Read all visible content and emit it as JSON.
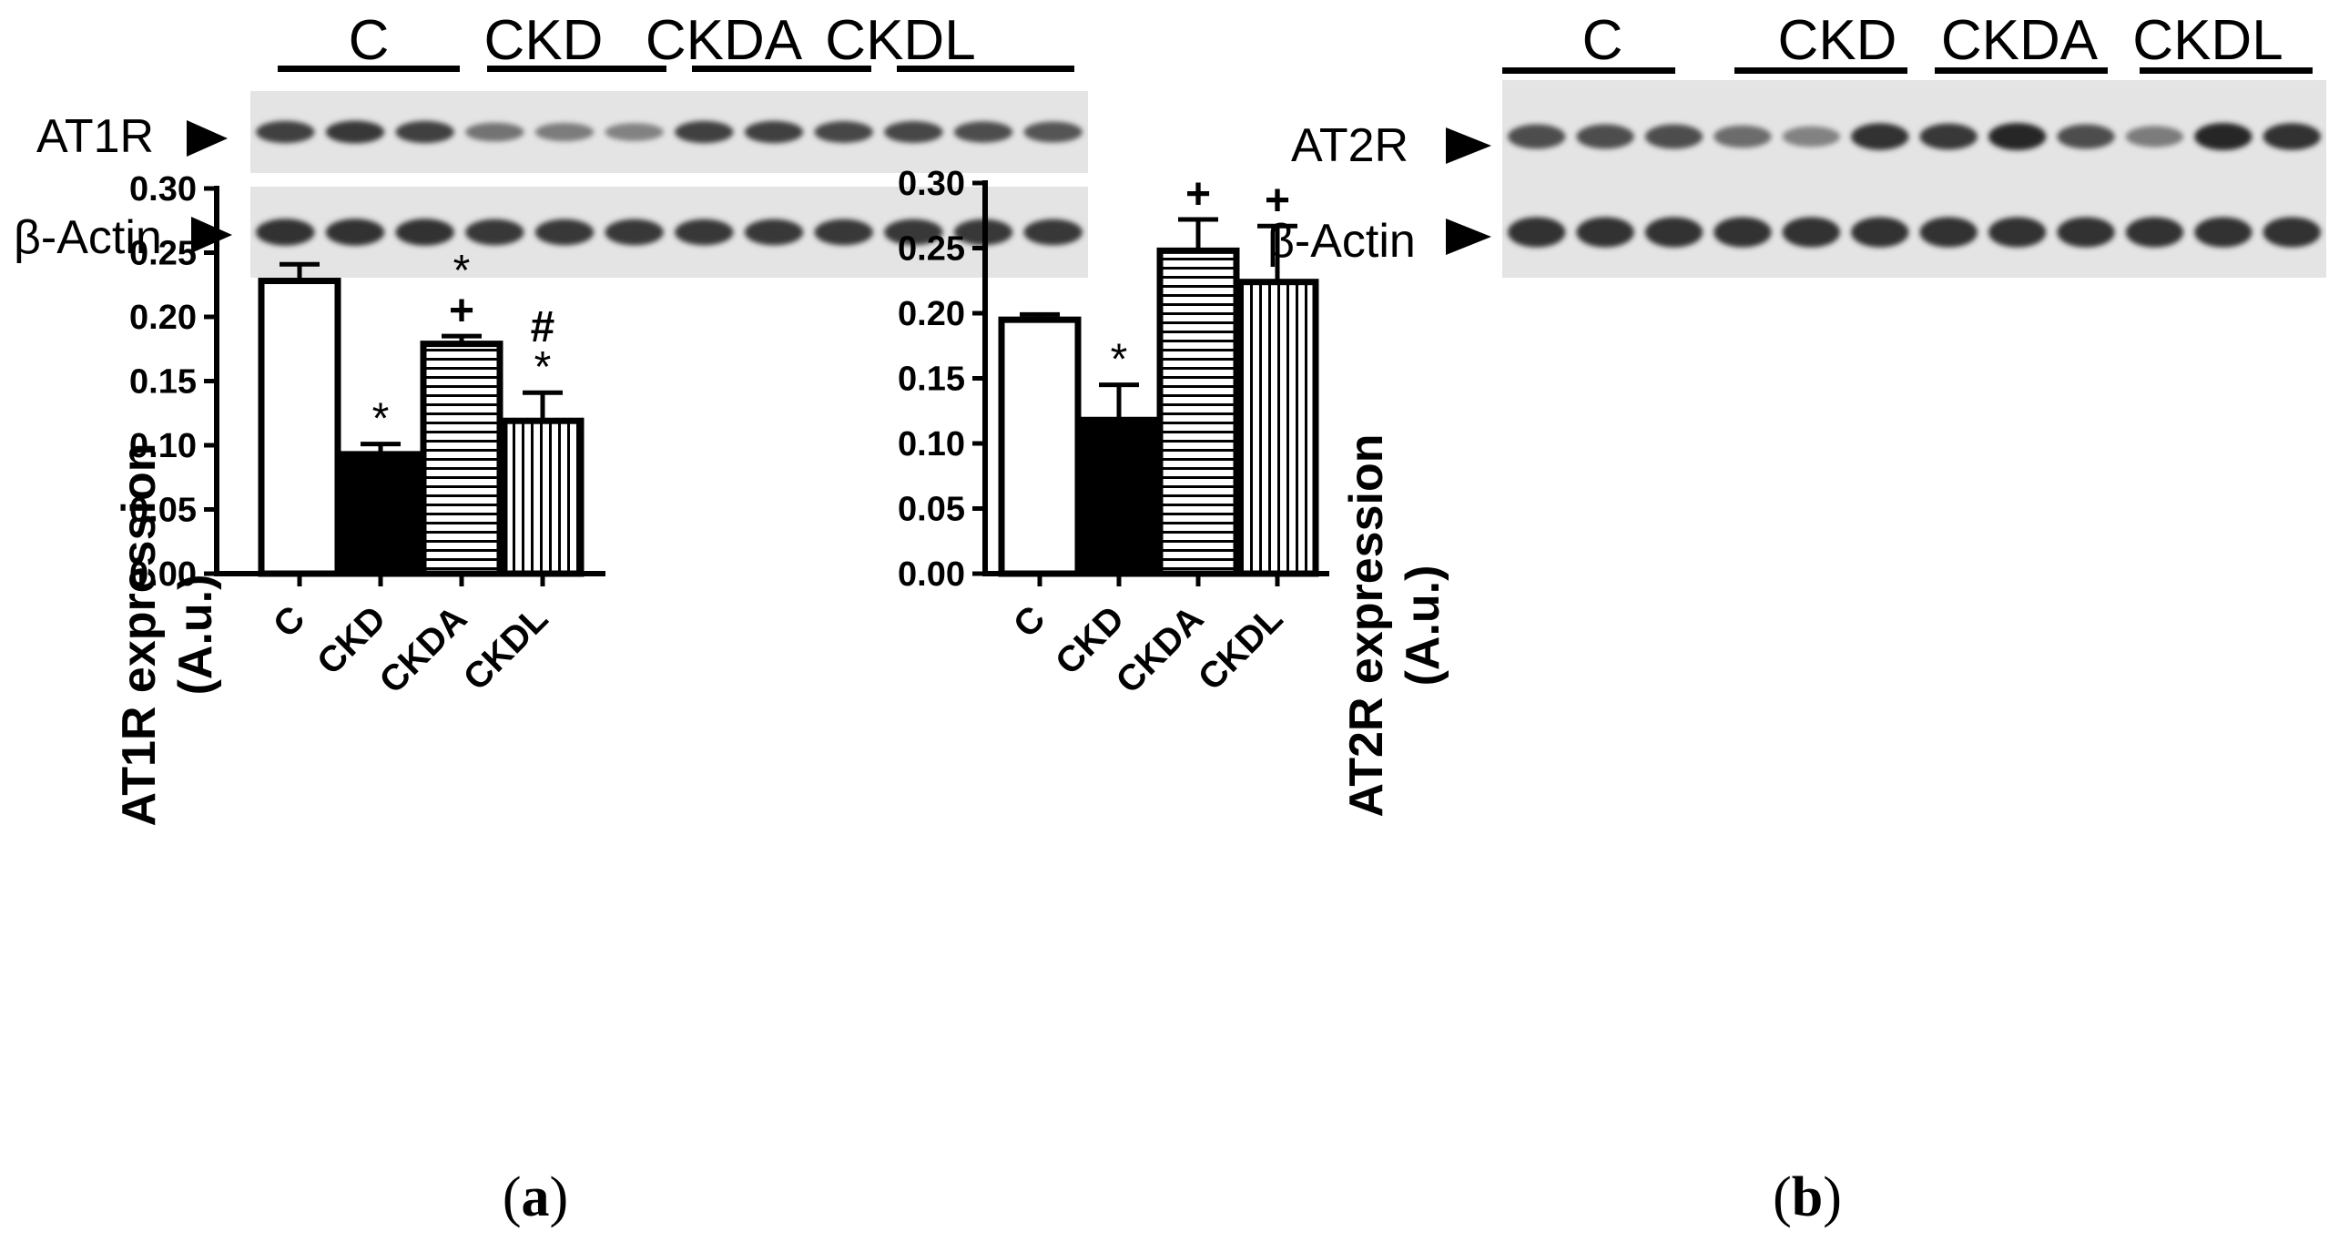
{
  "panels": [
    {
      "id": "a",
      "caption_letter": "a",
      "blot": {
        "groups": [
          "C",
          "CKD",
          "CKDA",
          "CKDL"
        ],
        "rows": [
          {
            "label": "AT1R",
            "lanes": [
              0.85,
              0.9,
              0.85,
              0.5,
              0.45,
              0.4,
              0.85,
              0.85,
              0.8,
              0.8,
              0.75,
              0.7
            ]
          },
          {
            "label": "β-Actin",
            "lanes": [
              0.95,
              0.95,
              0.95,
              0.9,
              0.9,
              0.9,
              0.9,
              0.9,
              0.9,
              0.9,
              0.9,
              0.9
            ]
          }
        ]
      }
    },
    {
      "id": "b",
      "caption_letter": "b",
      "blot": {
        "groups": [
          "C",
          "CKD",
          "CKDA",
          "CKDL"
        ],
        "rows": [
          {
            "label": "AT2R",
            "lanes": [
              0.75,
              0.75,
              0.75,
              0.55,
              0.4,
              0.95,
              0.9,
              1.0,
              0.75,
              0.45,
              1.0,
              0.95
            ]
          },
          {
            "label": "β-Actin",
            "lanes": [
              0.95,
              0.95,
              0.95,
              0.95,
              0.95,
              0.95,
              0.95,
              0.95,
              0.95,
              0.95,
              0.95,
              0.95
            ]
          }
        ]
      }
    }
  ],
  "chart_data": [
    {
      "type": "bar",
      "panel": "a",
      "categories": [
        "C",
        "CKD",
        "CKDA",
        "CKDL"
      ],
      "values": [
        0.228,
        0.093,
        0.179,
        0.119
      ],
      "errors": [
        0.013,
        0.008,
        0.006,
        0.022
      ],
      "fills": [
        "white",
        "black",
        "hstripe",
        "vstripe"
      ],
      "annotations": [
        [],
        [
          "*"
        ],
        [
          "+",
          "*"
        ],
        [
          "*",
          "#"
        ]
      ],
      "ylabel": "AT1R expression",
      "ylabel2": "(A.u.)",
      "ylim": [
        0,
        0.3
      ],
      "yticks": [
        "0.00",
        "0.05",
        "0.10",
        "0.15",
        "0.20",
        "0.25",
        "0.30"
      ]
    },
    {
      "type": "bar",
      "panel": "b",
      "categories": [
        "C",
        "CKD",
        "CKDA",
        "CKDL"
      ],
      "values": [
        0.195,
        0.118,
        0.248,
        0.224
      ],
      "errors": [
        0.004,
        0.027,
        0.024,
        0.043
      ],
      "fills": [
        "white",
        "black",
        "hstripe",
        "vstripe"
      ],
      "annotations": [
        [],
        [
          "*"
        ],
        [
          "+"
        ],
        [
          "+"
        ]
      ],
      "ylabel": "AT2R expression",
      "ylabel2": "(A.u.)",
      "ylim": [
        0,
        0.3
      ],
      "yticks": [
        "0.00",
        "0.05",
        "0.10",
        "0.15",
        "0.20",
        "0.25",
        "0.30"
      ]
    }
  ]
}
